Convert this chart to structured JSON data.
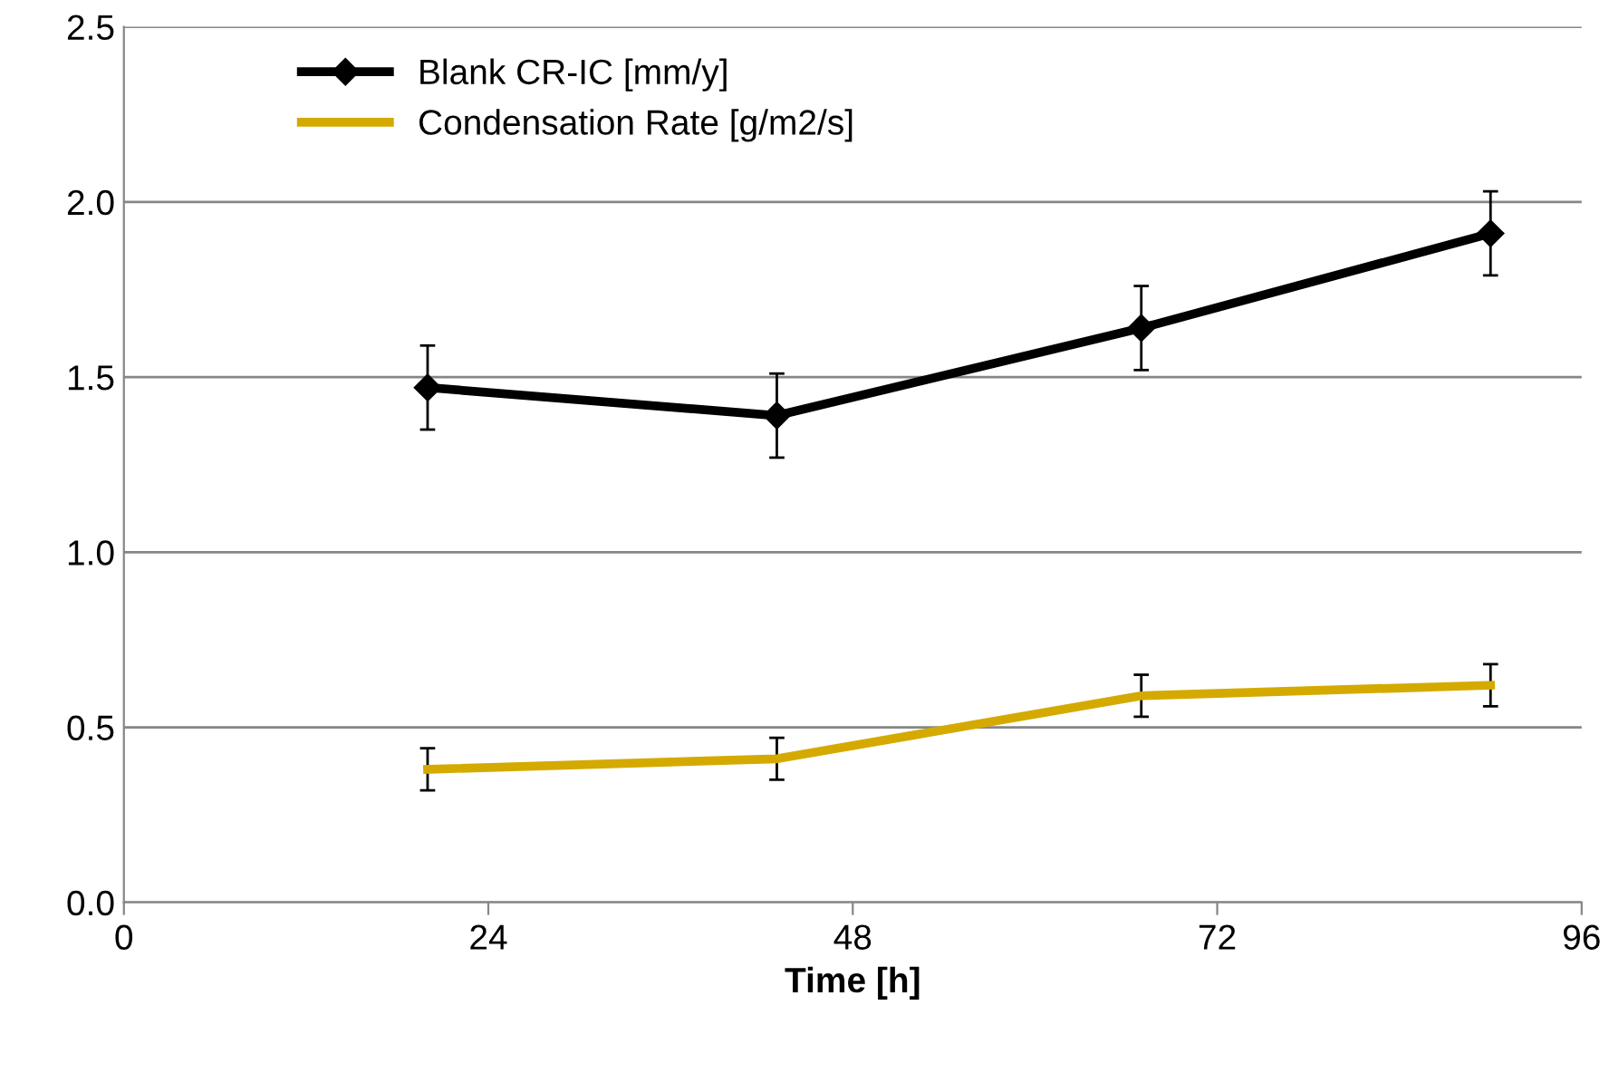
{
  "chart_data": {
    "type": "line",
    "xlabel": "Time [h]",
    "x": [
      20,
      43,
      67,
      90
    ],
    "series": [
      {
        "name": "Blank CR-IC [mm/y]",
        "color": "#000000",
        "marker": "diamond",
        "values": [
          1.47,
          1.39,
          1.64,
          1.91
        ],
        "errors": [
          0.12,
          0.12,
          0.12,
          0.12
        ]
      },
      {
        "name": "Condensation Rate [g/m2/s]",
        "color": "#d4aa00",
        "marker": "none",
        "values": [
          0.38,
          0.41,
          0.59,
          0.62
        ],
        "errors": [
          0.06,
          0.06,
          0.06,
          0.06
        ]
      }
    ],
    "xlim": [
      0,
      96
    ],
    "xticks": [
      0,
      24,
      48,
      72,
      96
    ],
    "ylim": [
      0,
      2.5
    ],
    "yticks": [
      {
        "value": 0,
        "label": "0.0"
      },
      {
        "value": 0.5,
        "label": "0.5"
      },
      {
        "value": 1,
        "label": "1.0"
      },
      {
        "value": 1.5,
        "label": "1.5"
      },
      {
        "value": 2,
        "label": "2.0"
      },
      {
        "value": 2.5,
        "label": "2.5"
      }
    ],
    "grid": "y",
    "legend": "top left",
    "line_style": "solid"
  }
}
